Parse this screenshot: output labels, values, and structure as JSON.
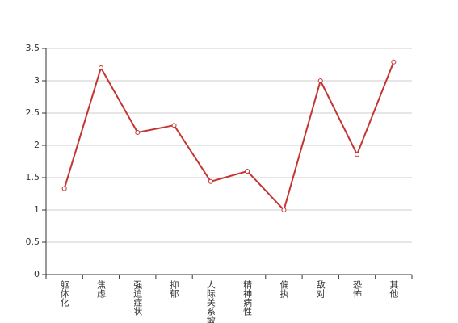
{
  "chart_data": {
    "type": "line",
    "categories": [
      "躯体化",
      "焦虑",
      "强迫症状",
      "抑郁",
      "人际关系敏感",
      "精神病性",
      "偏执",
      "敌对",
      "恐怖",
      "其他"
    ],
    "values": [
      1.33,
      3.2,
      2.2,
      2.31,
      1.44,
      1.6,
      1.0,
      3.0,
      1.86,
      3.29
    ],
    "color": "#c23531",
    "ylim": [
      0,
      3.5
    ],
    "yticks": [
      0,
      0.5,
      1,
      1.5,
      2,
      2.5,
      3,
      3.5
    ],
    "grid": true
  }
}
